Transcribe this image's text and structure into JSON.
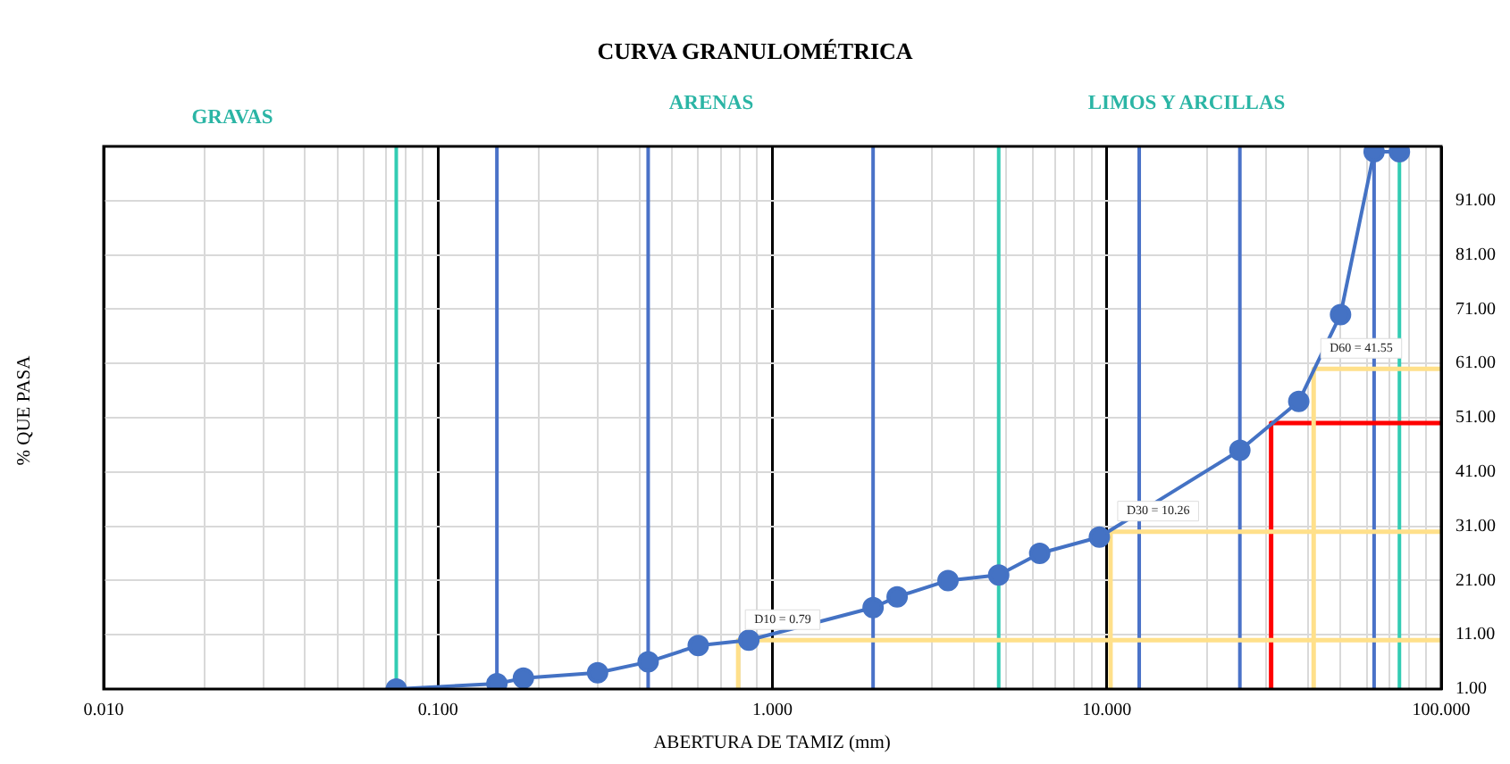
{
  "chart_data": {
    "type": "line",
    "title": "CURVA GRANULOMÉTRICA",
    "xlabel": "ABERTURA DE TAMIZ (mm)",
    "ylabel": "% QUE PASA",
    "annotations": [
      "GRAVAS",
      "ARENAS",
      "LIMOS Y ARCILLAS",
      {
        "text": "D10 = 0.79",
        "x": 0.79,
        "y": 10
      },
      {
        "text": "D30 = 10.26",
        "x": 10.26,
        "y": 30
      },
      {
        "text": "D60 = 41.55",
        "x": 41.55,
        "y": 60
      }
    ],
    "log": "x",
    "grid": true,
    "marker": "circle",
    "xlim": [
      0.01,
      100
    ],
    "xticks": [
      {
        "value": 0.01,
        "label": "0.010"
      },
      {
        "value": 0.02,
        "label": null
      },
      {
        "value": 0.03,
        "label": null
      },
      {
        "value": 0.04,
        "label": null
      },
      {
        "value": 0.05,
        "label": null
      },
      {
        "value": 0.06,
        "label": null
      },
      {
        "value": 0.07,
        "label": null
      },
      {
        "value": 0.08,
        "label": null
      },
      {
        "value": 0.09,
        "label": null
      },
      {
        "value": 0.1,
        "label": "0.100"
      },
      {
        "value": 0.2,
        "label": null
      },
      {
        "value": 0.3,
        "label": null
      },
      {
        "value": 0.4,
        "label": null
      },
      {
        "value": 0.5,
        "label": null
      },
      {
        "value": 0.6,
        "label": null
      },
      {
        "value": 0.7,
        "label": null
      },
      {
        "value": 0.8,
        "label": null
      },
      {
        "value": 0.9,
        "label": null
      },
      {
        "value": 1,
        "label": "1.000"
      },
      {
        "value": 2,
        "label": null
      },
      {
        "value": 3,
        "label": null
      },
      {
        "value": 4,
        "label": null
      },
      {
        "value": 5,
        "label": null
      },
      {
        "value": 6,
        "label": null
      },
      {
        "value": 7,
        "label": null
      },
      {
        "value": 8,
        "label": null
      },
      {
        "value": 9,
        "label": null
      },
      {
        "value": 10,
        "label": "10.000"
      },
      {
        "value": 20,
        "label": null
      },
      {
        "value": 30,
        "label": null
      },
      {
        "value": 40,
        "label": null
      },
      {
        "value": 50,
        "label": null
      },
      {
        "value": 60,
        "label": null
      },
      {
        "value": 70,
        "label": null
      },
      {
        "value": 80,
        "label": null
      },
      {
        "value": 90,
        "label": null
      },
      {
        "value": 100,
        "label": "100.000"
      }
    ],
    "ylim": [
      1,
      101
    ],
    "yticks": [
      {
        "value": 1,
        "label": "1.00"
      },
      {
        "value": 11,
        "label": "11.00"
      },
      {
        "value": 21,
        "label": "21.00"
      },
      {
        "value": 31,
        "label": "31.00"
      },
      {
        "value": 41,
        "label": "41.00"
      },
      {
        "value": 51,
        "label": "51.00"
      },
      {
        "value": 61,
        "label": "61.00"
      },
      {
        "value": 71,
        "label": "71.00"
      },
      {
        "value": 81,
        "label": "81.00"
      },
      {
        "value": 91,
        "label": "91.00"
      }
    ],
    "ref_lines": [
      {
        "axis": "x",
        "value": 0.075,
        "color": "#33ccb3"
      },
      {
        "axis": "x",
        "value": 4.75,
        "color": "#33ccb3"
      },
      {
        "axis": "x",
        "value": 75,
        "color": "#33ccb3"
      },
      {
        "axis": "x",
        "value": 0.15,
        "color": "#4a72c8"
      },
      {
        "axis": "x",
        "value": 0.425,
        "color": "#4a72c8"
      },
      {
        "axis": "x",
        "value": 2,
        "color": "#4a72c8"
      },
      {
        "axis": "x",
        "value": 12.5,
        "color": "#4a72c8"
      },
      {
        "axis": "x",
        "value": 25,
        "color": "#4a72c8"
      },
      {
        "axis": "x",
        "value": 63,
        "color": "#4a72c8"
      }
    ],
    "series": [
      {
        "color": "#4472c4",
        "x": [
          0.075,
          0.15,
          0.18,
          0.3,
          0.425,
          0.6,
          0.85,
          2,
          2.36,
          3.35,
          4.75,
          6.3,
          9.5,
          25,
          37.5,
          50,
          63,
          75
        ],
        "values": [
          1,
          2,
          3,
          4,
          6,
          9,
          10,
          16,
          18,
          21,
          22,
          26,
          29,
          45,
          54,
          70,
          100,
          100
        ]
      },
      {
        "color": "#ffe08a",
        "marker": "none",
        "x": [
          0.79,
          0.79,
          100
        ],
        "values": [
          1,
          10,
          10
        ]
      },
      {
        "color": "#ffe08a",
        "marker": "none",
        "x": [
          10.26,
          10.26,
          100
        ],
        "values": [
          1,
          30,
          30
        ]
      },
      {
        "color": "#ffe08a",
        "marker": "none",
        "x": [
          41.55,
          41.55,
          100
        ],
        "values": [
          1,
          60,
          60
        ]
      },
      {
        "color": "#ff0000",
        "marker": "none",
        "x": [
          31,
          31,
          100
        ],
        "values": [
          1,
          50,
          50
        ]
      }
    ]
  }
}
